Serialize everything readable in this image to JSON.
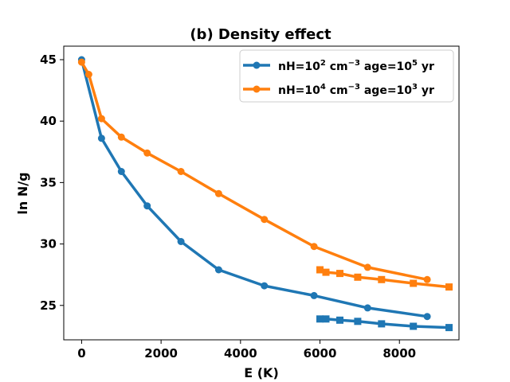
{
  "chart_data": {
    "type": "line",
    "title": "(b) Density effect",
    "xlabel": "E (K)",
    "ylabel": "ln N/g",
    "xlim": [
      -450,
      9500
    ],
    "ylim": [
      22.2,
      46.1
    ],
    "xticks": [
      0,
      2000,
      4000,
      6000,
      8000
    ],
    "yticks": [
      25,
      30,
      35,
      40,
      45
    ],
    "grid": false,
    "legend_position": "top-right",
    "series": [
      {
        "name": "nH=10^2 cm^-3 age=10^5 yr",
        "legend_base": "nH=10",
        "legend_exp1": "2",
        "legend_mid": " cm",
        "legend_exp2": "−3",
        "legend_mid2": " age=10",
        "legend_exp3": "5",
        "legend_tail": " yr",
        "color": "#1f77b4",
        "marker": "circle",
        "x": [
          0,
          500,
          1000,
          1650,
          2500,
          3450,
          4600,
          5850,
          7200,
          8700
        ],
        "y": [
          45.0,
          38.6,
          35.9,
          33.1,
          30.2,
          27.9,
          26.6,
          25.8,
          24.8,
          24.1
        ]
      },
      {
        "name": "nH=10^2 cm^-3 age=10^5 yr (squares)",
        "color": "#1f77b4",
        "marker": "square",
        "x": [
          6000,
          6150,
          6500,
          6950,
          7550,
          8350,
          9250
        ],
        "y": [
          23.9,
          23.9,
          23.8,
          23.7,
          23.5,
          23.3,
          23.2
        ]
      },
      {
        "name": "nH=10^4 cm^-3 age=10^3 yr",
        "legend_base": "nH=10",
        "legend_exp1": "4",
        "legend_mid": " cm",
        "legend_exp2": "−3",
        "legend_mid2": " age=10",
        "legend_exp3": "3",
        "legend_tail": " yr",
        "color": "#ff7f0e",
        "marker": "circle",
        "x": [
          0,
          180,
          500,
          1000,
          1650,
          2500,
          3450,
          4600,
          5850,
          7200,
          8700
        ],
        "y": [
          44.8,
          43.8,
          40.2,
          38.7,
          37.4,
          35.9,
          34.1,
          32.0,
          29.8,
          28.1,
          27.1
        ]
      },
      {
        "name": "nH=10^4 cm^-3 age=10^3 yr (squares)",
        "color": "#ff7f0e",
        "marker": "square",
        "x": [
          6000,
          6150,
          6500,
          6950,
          7550,
          8350,
          9250
        ],
        "y": [
          27.9,
          27.7,
          27.6,
          27.3,
          27.1,
          26.8,
          26.5
        ]
      }
    ]
  }
}
